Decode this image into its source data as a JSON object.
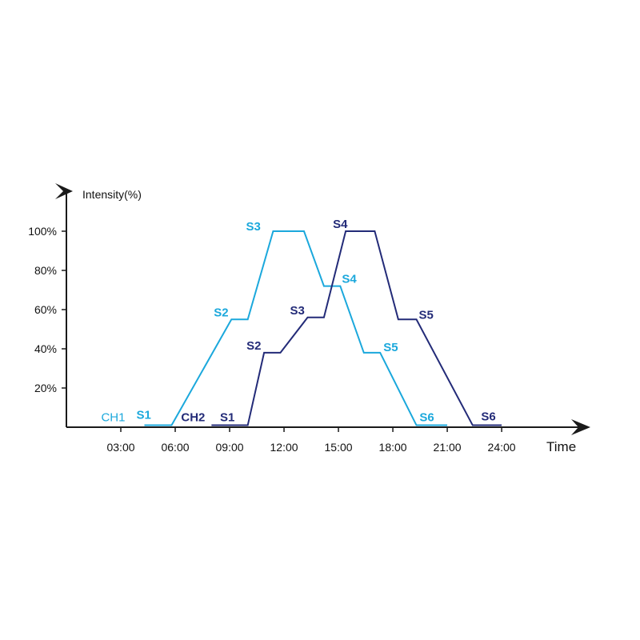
{
  "chart_data": {
    "type": "line",
    "xlabel": "Time",
    "ylabel": "Intensity(%)",
    "x_ticks": [
      "03:00",
      "06:00",
      "09:00",
      "12:00",
      "15:00",
      "18:00",
      "21:00",
      "24:00"
    ],
    "x_tick_values": [
      3,
      6,
      9,
      12,
      15,
      18,
      21,
      24
    ],
    "y_ticks": [
      "20%",
      "40%",
      "60%",
      "80%",
      "100%"
    ],
    "y_tick_values": [
      20,
      40,
      60,
      80,
      100
    ],
    "xlim": [
      0,
      28.5
    ],
    "ylim": [
      0,
      115
    ],
    "grid": false,
    "colors": {
      "axis": "#1a1a1a",
      "ch1": "#1ba8dc",
      "ch2": "#232b78"
    },
    "series": [
      {
        "name": "CH1",
        "color": "#1ba8dc",
        "points": [
          [
            4.3,
            1
          ],
          [
            5.8,
            1
          ],
          [
            9.1,
            55
          ],
          [
            10.0,
            55
          ],
          [
            11.4,
            100
          ],
          [
            13.1,
            100
          ],
          [
            14.2,
            72
          ],
          [
            15.1,
            72
          ],
          [
            16.4,
            38
          ],
          [
            17.3,
            38
          ],
          [
            19.3,
            1
          ],
          [
            21.0,
            1
          ]
        ],
        "stage_labels": [
          {
            "text": "S1",
            "x": 4.3,
            "y": 1
          },
          {
            "text": "S2",
            "x": 9.1,
            "y": 55
          },
          {
            "text": "S3",
            "x": 11.4,
            "y": 100
          },
          {
            "text": "S4",
            "x": 15.1,
            "y": 72
          },
          {
            "text": "S5",
            "x": 17.3,
            "y": 38
          },
          {
            "text": "S6",
            "x": 20.0,
            "y": 1
          }
        ]
      },
      {
        "name": "CH2",
        "color": "#232b78",
        "points": [
          [
            8.0,
            1
          ],
          [
            10.0,
            1
          ],
          [
            10.9,
            38
          ],
          [
            11.8,
            38
          ],
          [
            13.3,
            56
          ],
          [
            14.2,
            56
          ],
          [
            15.4,
            100
          ],
          [
            17.0,
            100
          ],
          [
            18.3,
            55
          ],
          [
            19.3,
            55
          ],
          [
            22.4,
            1
          ],
          [
            24.0,
            1
          ]
        ],
        "stage_labels": [
          {
            "text": "S1",
            "x": 9.0,
            "y": 1
          },
          {
            "text": "S2",
            "x": 10.9,
            "y": 38
          },
          {
            "text": "S3",
            "x": 13.3,
            "y": 56
          },
          {
            "text": "S4",
            "x": 15.4,
            "y": 100
          },
          {
            "text": "S5",
            "x": 19.3,
            "y": 55
          },
          {
            "text": "S6",
            "x": 23.0,
            "y": 1
          }
        ]
      }
    ]
  }
}
